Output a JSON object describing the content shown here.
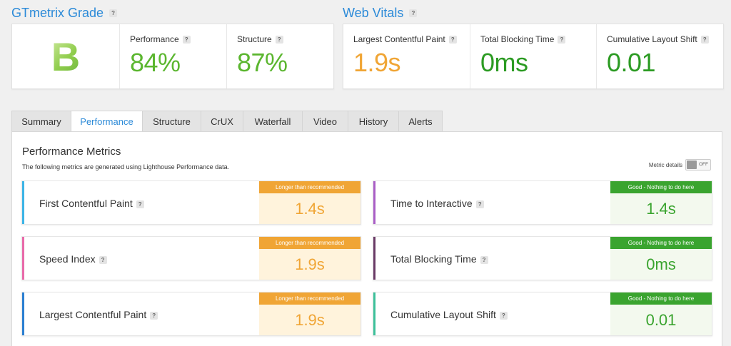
{
  "grade_section": {
    "title": "GTmetrix Grade",
    "grade": "B",
    "performance": {
      "label": "Performance",
      "value": "84%"
    },
    "structure": {
      "label": "Structure",
      "value": "87%"
    }
  },
  "web_vitals": {
    "title": "Web Vitals",
    "lcp": {
      "label": "Largest Contentful Paint",
      "value": "1.9s"
    },
    "tbt": {
      "label": "Total Blocking Time",
      "value": "0ms"
    },
    "cls": {
      "label": "Cumulative Layout Shift",
      "value": "0.01"
    }
  },
  "help_mark": "?",
  "tabs": [
    {
      "label": "Summary"
    },
    {
      "label": "Performance"
    },
    {
      "label": "Structure"
    },
    {
      "label": "CrUX"
    },
    {
      "label": "Waterfall"
    },
    {
      "label": "Video"
    },
    {
      "label": "History"
    },
    {
      "label": "Alerts"
    }
  ],
  "active_tab": "Performance",
  "panel": {
    "title": "Performance Metrics",
    "subtitle": "The following metrics are generated using Lighthouse Performance data.",
    "metric_details_label": "Metric details",
    "toggle_state": "OFF"
  },
  "colors": {
    "accent": "#2b8ad8",
    "warn": "#f0a535",
    "good": "#3aa42f",
    "fcp_bar": "#3cb4e6",
    "si_bar": "#e86aa9",
    "lcp_bar": "#2b7fd1",
    "tti_bar": "#a95ec6",
    "tbt_bar": "#6a3a66",
    "cls_bar": "#3cc09a"
  },
  "metrics": [
    {
      "name": "First Contentful Paint",
      "status": "Longer than recommended",
      "value": "1.4s"
    },
    {
      "name": "Time to Interactive",
      "status": "Good - Nothing to do here",
      "value": "1.4s"
    },
    {
      "name": "Speed Index",
      "status": "Longer than recommended",
      "value": "1.9s"
    },
    {
      "name": "Total Blocking Time",
      "status": "Good - Nothing to do here",
      "value": "0ms"
    },
    {
      "name": "Largest Contentful Paint",
      "status": "Longer than recommended",
      "value": "1.9s"
    },
    {
      "name": "Cumulative Layout Shift",
      "status": "Good - Nothing to do here",
      "value": "0.01"
    }
  ]
}
